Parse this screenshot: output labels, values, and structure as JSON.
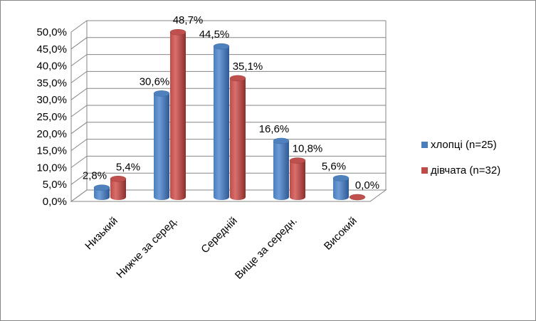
{
  "chart_data": {
    "type": "bar",
    "title": "",
    "xlabel": "",
    "ylabel": "",
    "ylim": [
      0,
      50
    ],
    "ytick_step": 5,
    "yticks": [
      "0,0%",
      "5,0%",
      "10,0%",
      "15,0%",
      "20,0%",
      "25,0%",
      "30,0%",
      "35,0%",
      "40,0%",
      "45,0%",
      "50,0%"
    ],
    "grid": true,
    "legend_position": "right",
    "categories": [
      "Низький",
      "Нижче за серед.",
      "Середній",
      "Вище за середн.",
      "Високий"
    ],
    "series": [
      {
        "name": "хлопці (n=25)",
        "color": "#4A7EBB",
        "values": [
          2.8,
          30.6,
          44.5,
          16.6,
          5.6
        ],
        "labels": [
          "2,8%",
          "30,6%",
          "44,5%",
          "16,6%",
          "5,6%"
        ]
      },
      {
        "name": "дівчата (n=32)",
        "color": "#BE4B48",
        "values": [
          5.4,
          48.7,
          35.1,
          10.8,
          0.0
        ],
        "labels": [
          "5,4%",
          "48,7%",
          "35,1%",
          "10,8%",
          "0,0%"
        ]
      }
    ]
  }
}
